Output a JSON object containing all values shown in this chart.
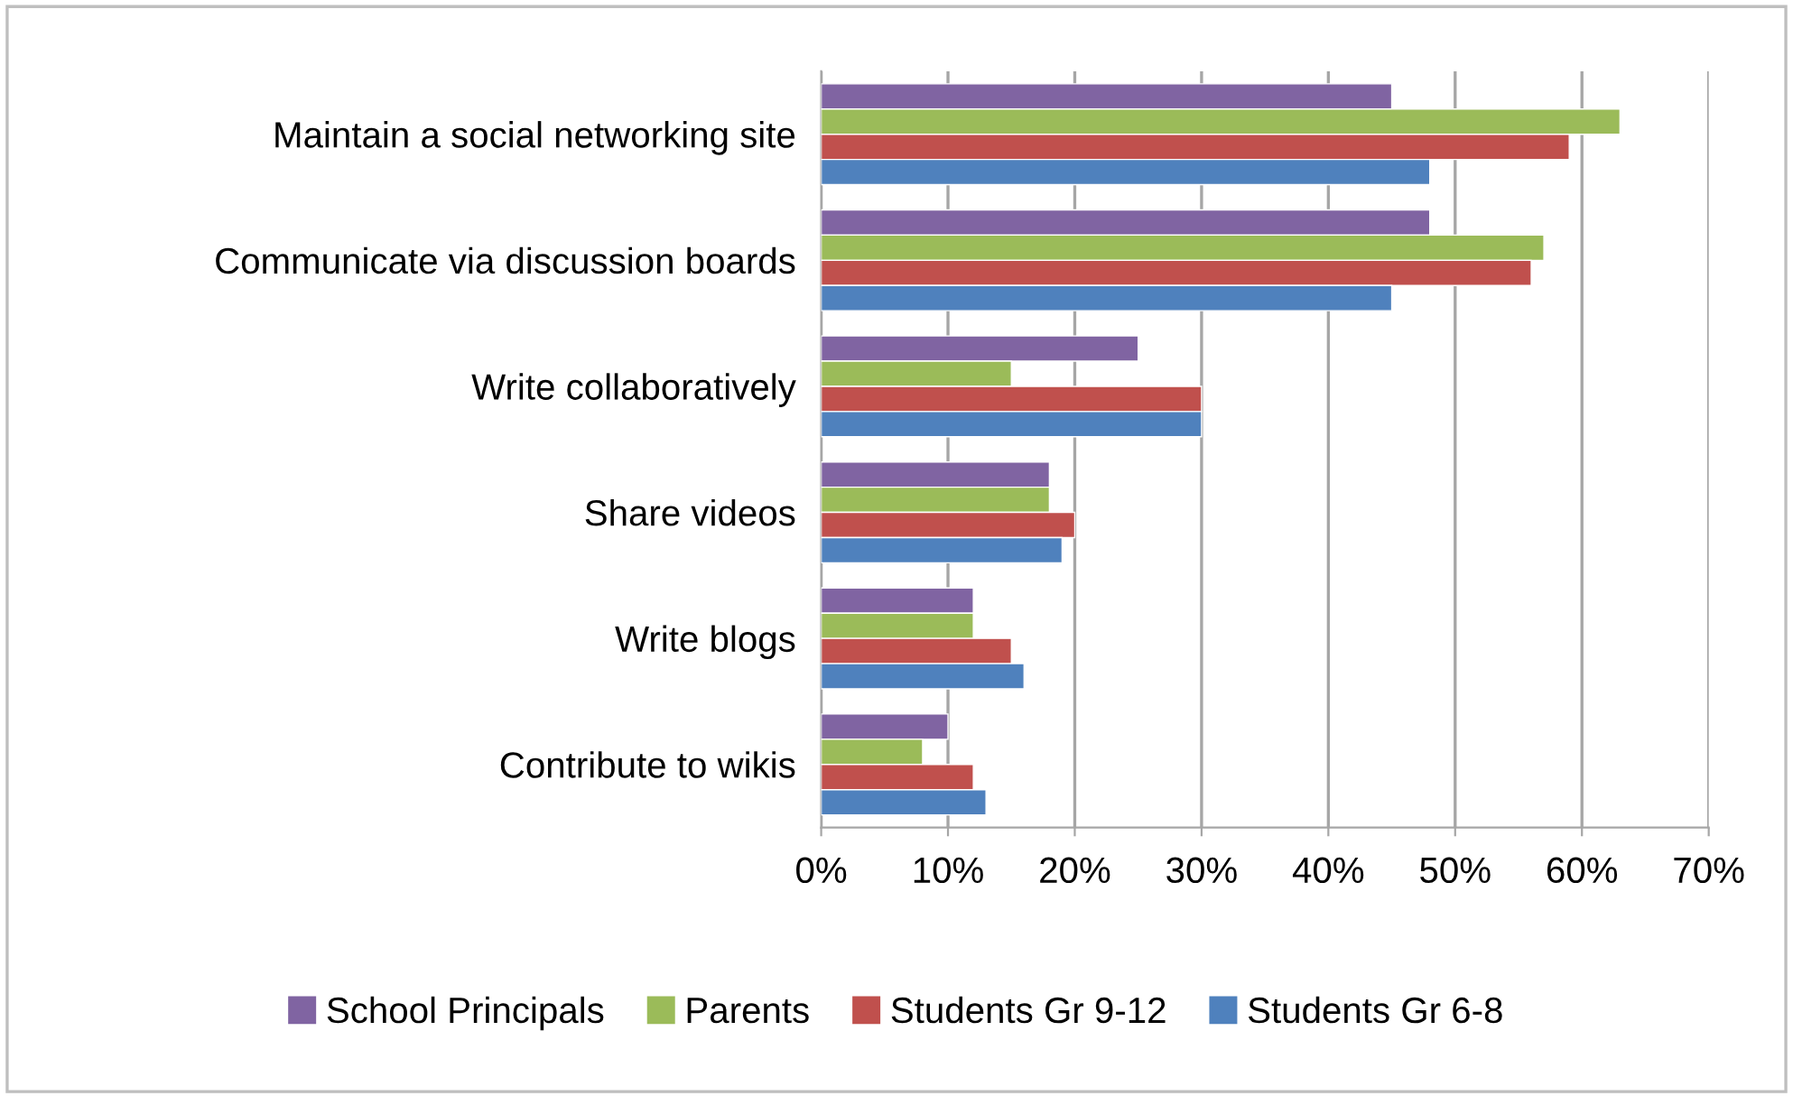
{
  "chart_data": {
    "type": "bar",
    "orientation": "horizontal",
    "categories": [
      "Maintain a social networking site",
      "Communicate via discussion boards",
      "Write collaboratively",
      "Share videos",
      "Write blogs",
      "Contribute to wikis"
    ],
    "series": [
      {
        "name": "School Principals",
        "color": "#8064a2",
        "values": [
          45,
          48,
          25,
          18,
          12,
          10
        ]
      },
      {
        "name": "Parents",
        "color": "#9bbb59",
        "values": [
          63,
          57,
          15,
          18,
          12,
          8
        ]
      },
      {
        "name": "Students Gr 9-12",
        "color": "#c0504d",
        "values": [
          59,
          56,
          30,
          20,
          15,
          12
        ]
      },
      {
        "name": "Students Gr 6-8",
        "color": "#4f81bd",
        "values": [
          48,
          45,
          30,
          19,
          16,
          13
        ]
      }
    ],
    "xlim": [
      0,
      70
    ],
    "xticks": [
      {
        "value": 0,
        "label": "0%"
      },
      {
        "value": 10,
        "label": "10%"
      },
      {
        "value": 20,
        "label": "20%"
      },
      {
        "value": 30,
        "label": "30%"
      },
      {
        "value": 40,
        "label": "40%"
      },
      {
        "value": 50,
        "label": "50%"
      },
      {
        "value": 60,
        "label": "60%"
      },
      {
        "value": 70,
        "label": "70%"
      }
    ],
    "grid": "x",
    "legend": "bottom"
  }
}
